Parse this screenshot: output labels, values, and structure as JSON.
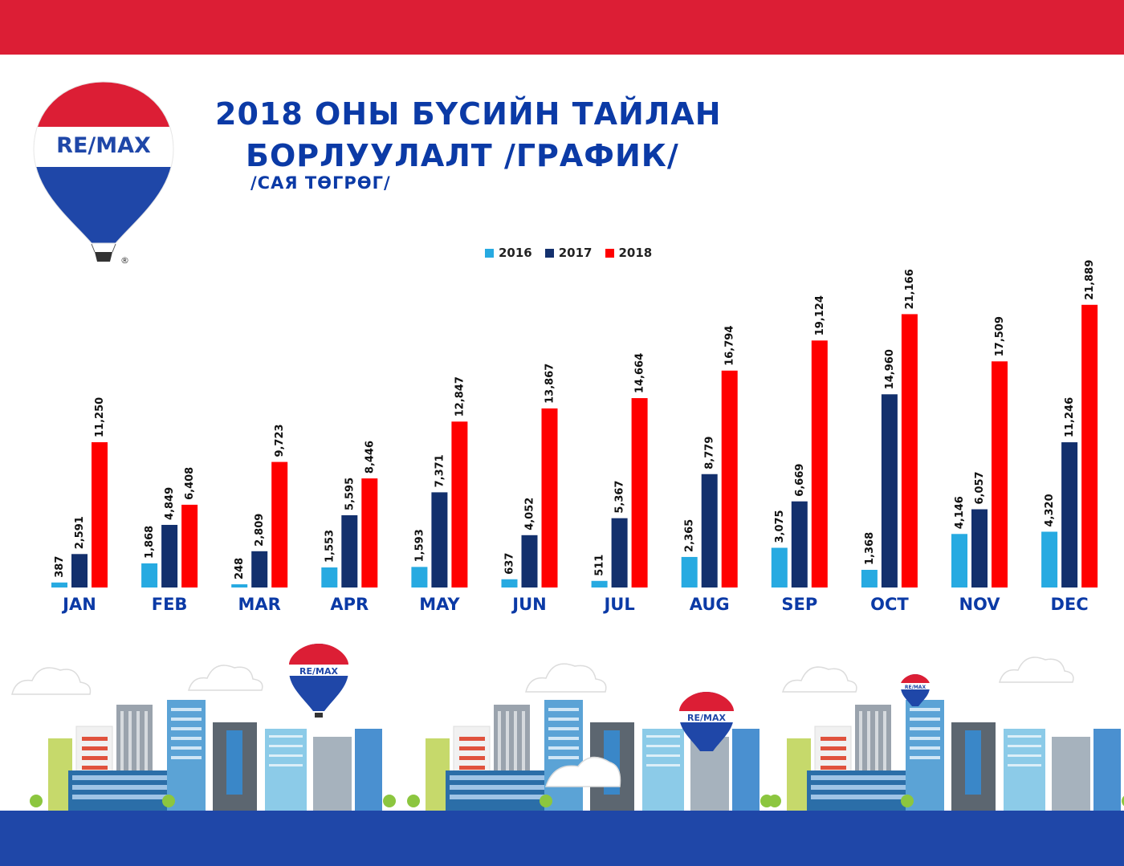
{
  "header": {
    "title_line1": "2018 ОНЫ БҮСИЙН ТАЙЛАН",
    "title_line2": "БОРЛУУЛАЛТ /ГРАФИК/",
    "subtitle": "/САЯ ТӨГРӨГ/"
  },
  "logo": {
    "brand": "RE/MAX",
    "registered": "®"
  },
  "balloon_small_1": {
    "brand": "RE/MAX"
  },
  "balloon_small_2": {
    "brand": "RE/MAX"
  },
  "balloon_small_3": {
    "brand": "RE/MAX"
  },
  "colors": {
    "top_band": "#dc1e35",
    "bottom_band": "#1f47a8",
    "title": "#0b3aa6",
    "series_2016": "#27aae1",
    "series_2017": "#13306d",
    "series_2018": "#ff0000"
  },
  "chart_data": {
    "type": "bar",
    "legend_position": "top-center",
    "grid": false,
    "categories": [
      "JAN",
      "FEB",
      "MAR",
      "APR",
      "MAY",
      "JUN",
      "JUL",
      "AUG",
      "SEP",
      "OCT",
      "NOV",
      "DEC"
    ],
    "series": [
      {
        "name": "2016",
        "color": "#27aae1",
        "values": [
          387,
          1868,
          248,
          1553,
          1593,
          637,
          511,
          2365,
          3075,
          1368,
          4146,
          4320
        ],
        "labels": [
          "387",
          "1,868",
          "248",
          "1,553",
          "1,593",
          "637",
          "511",
          "2,365",
          "3,075",
          "1,368",
          "4,146",
          "4,320"
        ]
      },
      {
        "name": "2017",
        "color": "#13306d",
        "values": [
          2591,
          4849,
          2809,
          5595,
          7371,
          4052,
          5367,
          8779,
          6669,
          14960,
          6057,
          11246
        ],
        "labels": [
          "2,591",
          "4,849",
          "2,809",
          "5,595",
          "7,371",
          "4,052",
          "5,367",
          "8,779",
          "6,669",
          "14,960",
          "6,057",
          "11,246"
        ]
      },
      {
        "name": "2018",
        "color": "#ff0000",
        "values": [
          11250,
          6408,
          9723,
          8446,
          12847,
          13867,
          14664,
          16794,
          19124,
          21166,
          17509,
          21889
        ],
        "labels": [
          "11,250",
          "6,408",
          "9,723",
          "8,446",
          "12,847",
          "13,867",
          "14,664",
          "16,794",
          "19,124",
          "21,166",
          "17,509",
          "21,889"
        ]
      }
    ],
    "ylim": [
      0,
      22000
    ]
  }
}
